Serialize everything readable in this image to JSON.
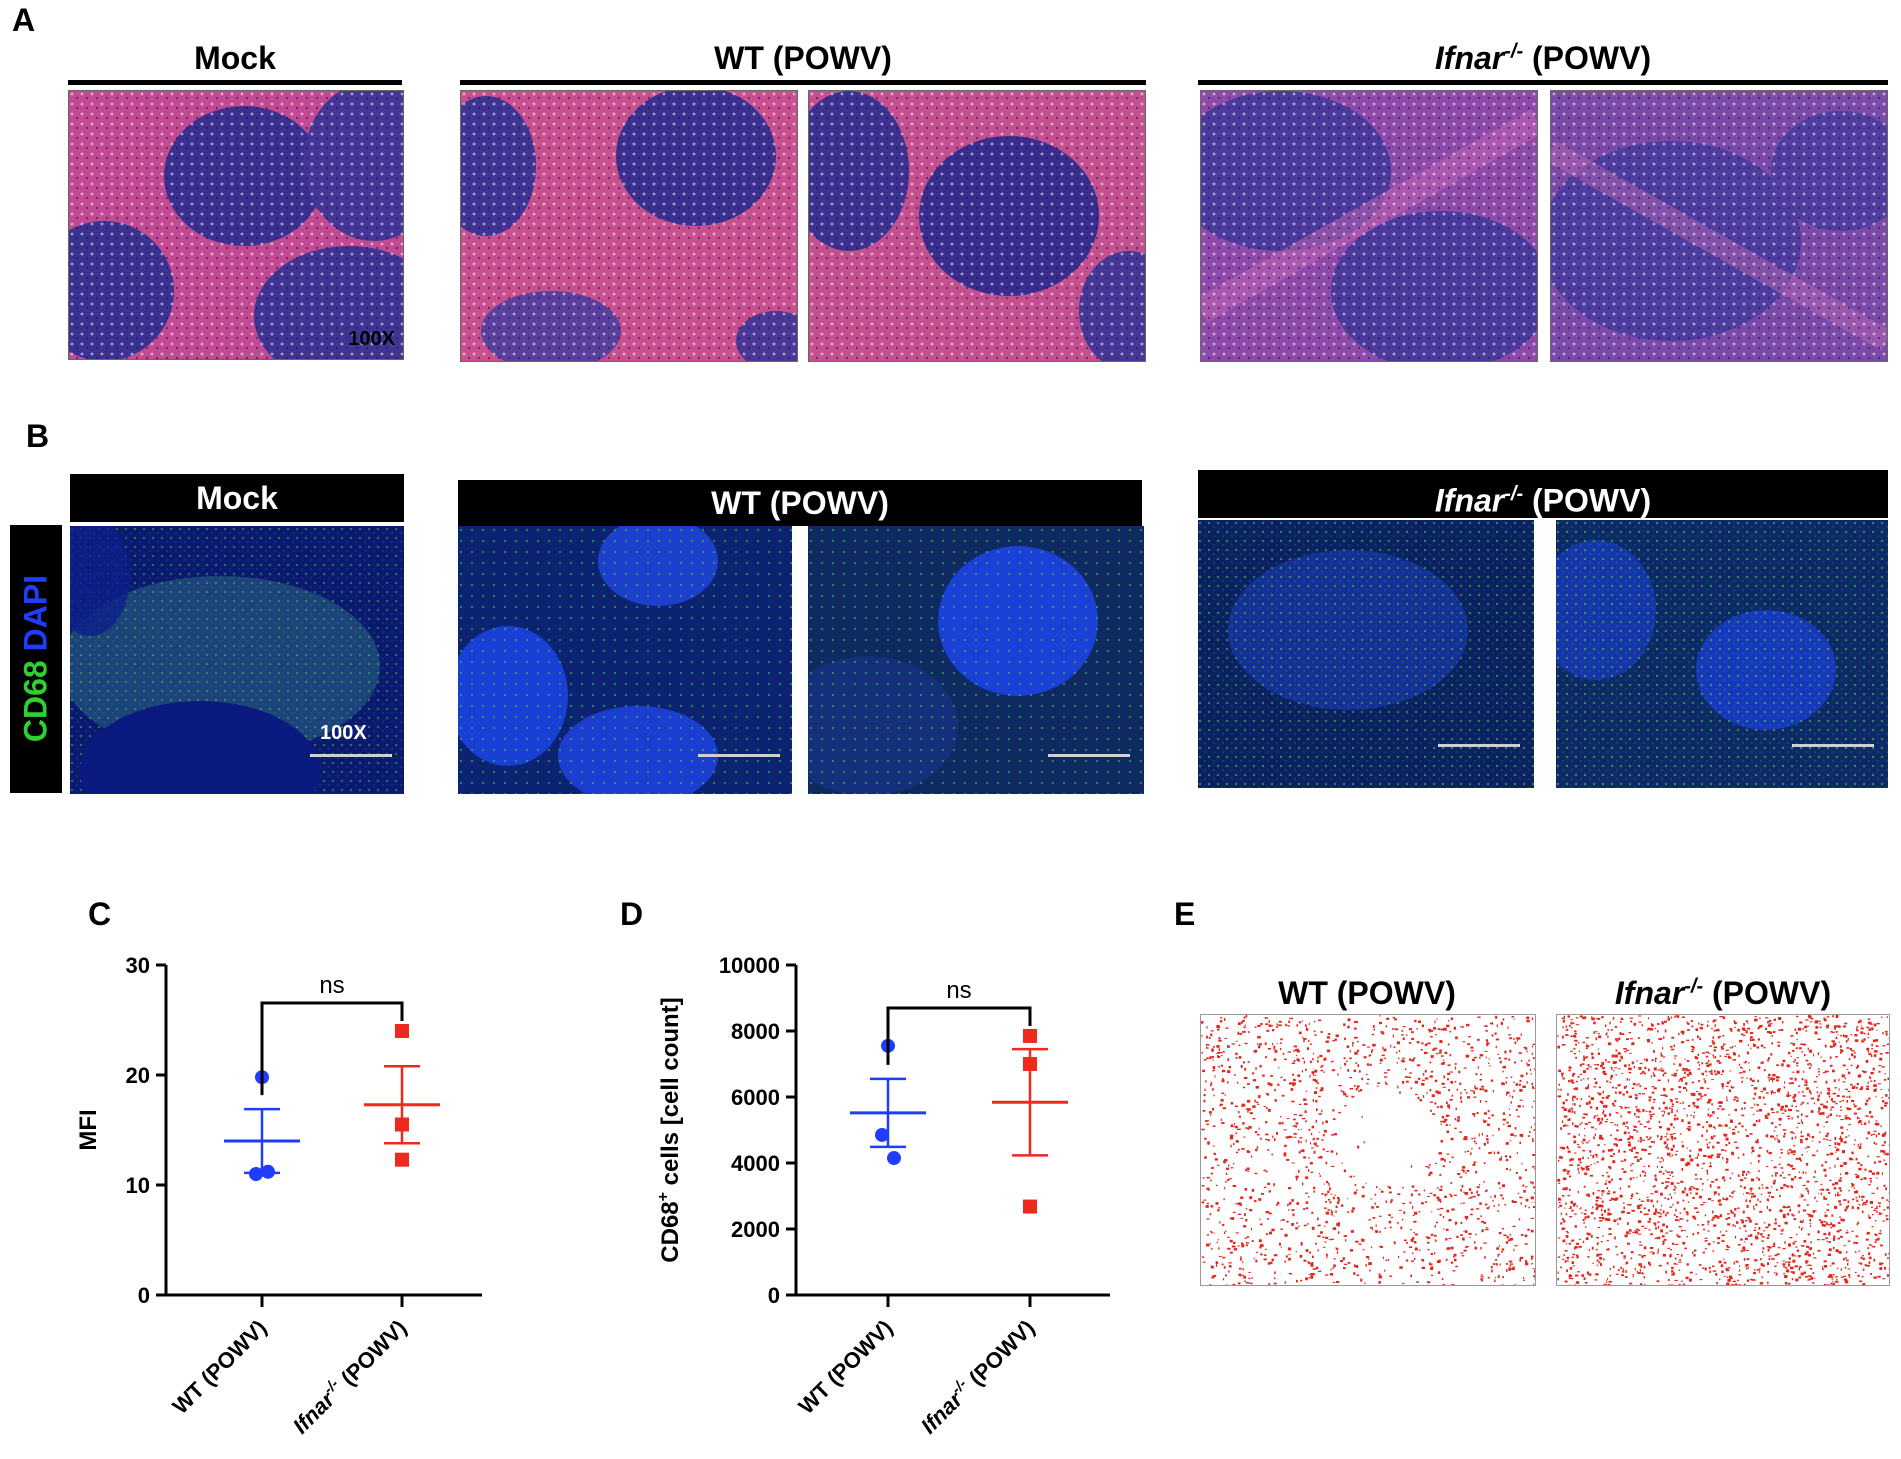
{
  "panels": {
    "A": "A",
    "B": "B",
    "C": "C",
    "D": "D",
    "E": "E"
  },
  "groups": {
    "mock": "Mock",
    "wt": "WT (POWV)",
    "ifnar_prefix": "Ifnar",
    "ifnar_sup": "-/-",
    "ifnar_suffix": " (POWV)"
  },
  "magnification": "100X",
  "stain": {
    "marker": "CD68",
    "counterstain": "DAPI",
    "marker_color": "#2fd12f",
    "counterstain_color": "#1f3cff"
  },
  "colors": {
    "wt": "#1f3cff",
    "ifnar": "#ee2a1e",
    "he_pink": "#c8468f",
    "he_purple": "#3a2a8a"
  },
  "chart_data": [
    {
      "panel": "C",
      "type": "scatter",
      "ylabel": "MFI",
      "ylim": [
        0,
        30
      ],
      "yticks": [
        0,
        10,
        20,
        30
      ],
      "categories": [
        "WT (POWV)",
        "Ifnar-/- (POWV)"
      ],
      "significance": "ns",
      "series": [
        {
          "category": "WT (POWV)",
          "marker": "circle",
          "color": "#1f3cff",
          "points": [
            19.8,
            11.0,
            11.2
          ],
          "mean": 14.0,
          "sem": 2.9
        },
        {
          "category": "Ifnar-/- (POWV)",
          "marker": "square",
          "color": "#ee2a1e",
          "points": [
            24.0,
            15.5,
            12.3
          ],
          "mean": 17.3,
          "sem": 3.5
        }
      ]
    },
    {
      "panel": "D",
      "type": "scatter",
      "ylabel": "CD68+ cells [cell count]",
      "ylim": [
        0,
        10000
      ],
      "yticks": [
        0,
        2000,
        4000,
        6000,
        8000,
        10000
      ],
      "categories": [
        "WT (POWV)",
        "Ifnar-/- (POWV)"
      ],
      "significance": "ns",
      "series": [
        {
          "category": "WT (POWV)",
          "marker": "circle",
          "color": "#1f3cff",
          "points": [
            7550,
            4850,
            4150
          ],
          "mean": 5520,
          "sem": 1030
        },
        {
          "category": "Ifnar-/- (POWV)",
          "marker": "square",
          "color": "#ee2a1e",
          "points": [
            7850,
            7000,
            2680
          ],
          "mean": 5840,
          "sem": 1610
        }
      ]
    }
  ]
}
